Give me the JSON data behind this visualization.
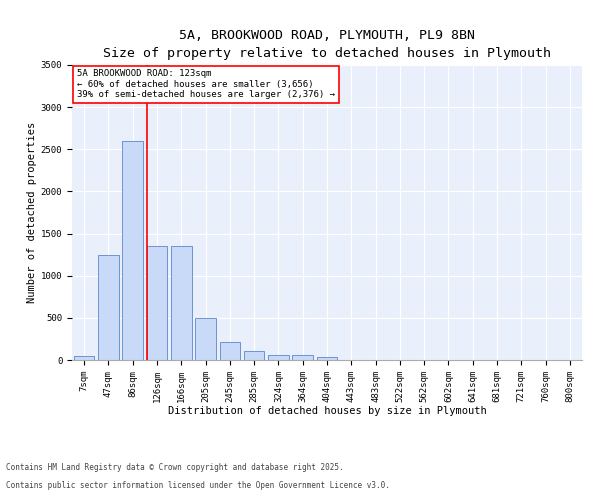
{
  "title_line1": "5A, BROOKWOOD ROAD, PLYMOUTH, PL9 8BN",
  "title_line2": "Size of property relative to detached houses in Plymouth",
  "xlabel": "Distribution of detached houses by size in Plymouth",
  "ylabel": "Number of detached properties",
  "categories": [
    "7sqm",
    "47sqm",
    "86sqm",
    "126sqm",
    "166sqm",
    "205sqm",
    "245sqm",
    "285sqm",
    "324sqm",
    "364sqm",
    "404sqm",
    "443sqm",
    "483sqm",
    "522sqm",
    "562sqm",
    "602sqm",
    "641sqm",
    "681sqm",
    "721sqm",
    "760sqm",
    "800sqm"
  ],
  "bar_values": [
    50,
    1240,
    2600,
    1350,
    1350,
    500,
    210,
    110,
    60,
    55,
    35,
    0,
    0,
    0,
    0,
    0,
    0,
    0,
    0,
    0,
    0
  ],
  "bar_color": "#c9daf8",
  "bar_edge_color": "#4472c4",
  "ylim": [
    0,
    3500
  ],
  "yticks": [
    0,
    500,
    1000,
    1500,
    2000,
    2500,
    3000,
    3500
  ],
  "vline_color": "red",
  "annotation_text": "5A BROOKWOOD ROAD: 123sqm\n← 60% of detached houses are smaller (3,656)\n39% of semi-detached houses are larger (2,376) →",
  "annotation_box_color": "red",
  "background_color": "#eaf0fb",
  "grid_color": "#ffffff",
  "footer_line1": "Contains HM Land Registry data © Crown copyright and database right 2025.",
  "footer_line2": "Contains public sector information licensed under the Open Government Licence v3.0.",
  "title_fontsize": 9.5,
  "subtitle_fontsize": 8.5,
  "axis_label_fontsize": 7.5,
  "tick_fontsize": 6.5,
  "annotation_fontsize": 6.5,
  "footer_fontsize": 5.5
}
